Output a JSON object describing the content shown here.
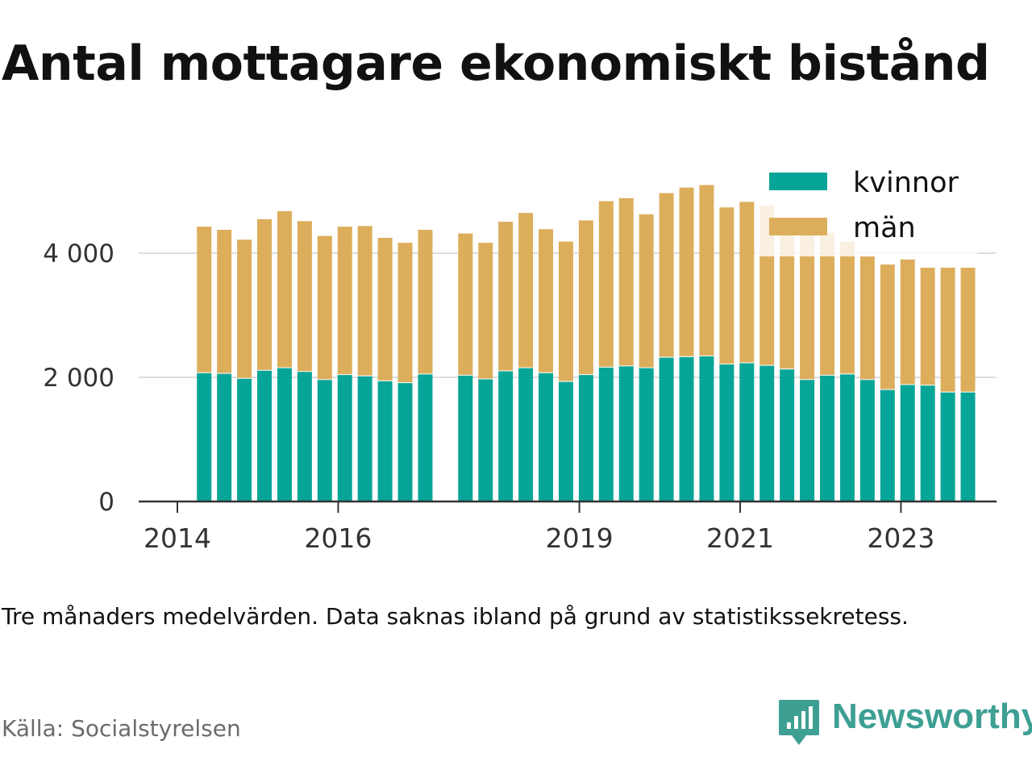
{
  "title": "Antal mottagare ekonomiskt bistånd",
  "note": "Tre månaders medelvärden. Data saknas ibland på grund av statistikssekretess.",
  "source": "Källa: Socialstyrelsen",
  "brand": {
    "name": "Newsworthy",
    "color": "#3e9f93",
    "icon": "speech-bubble-bar-chart-icon"
  },
  "chart_data": {
    "type": "bar",
    "stacked": true,
    "x_axis": {
      "tick_labels": [
        "2014",
        "2016",
        "2019",
        "2021",
        "2023"
      ],
      "range": [
        "2014-01",
        "2024-08"
      ]
    },
    "y_axis": {
      "ticks": [
        0,
        2000,
        4000
      ],
      "tick_labels": [
        "0",
        "2 000",
        "4 000"
      ],
      "range": [
        0,
        5200
      ]
    },
    "grid": true,
    "legend": "top-right",
    "periods": [
      "2014-05",
      "2014-08",
      "2014-11",
      "2015-02",
      "2015-05",
      "2015-08",
      "2015-11",
      "2016-02",
      "2016-05",
      "2016-08",
      "2016-11",
      "2017-02",
      "2017-08",
      "2017-11",
      "2018-02",
      "2018-05",
      "2018-08",
      "2018-11",
      "2019-02",
      "2019-05",
      "2019-08",
      "2019-11",
      "2020-02",
      "2020-05",
      "2020-08",
      "2020-11",
      "2021-02",
      "2021-05",
      "2021-08",
      "2021-11",
      "2022-02",
      "2022-05",
      "2022-08",
      "2022-11",
      "2023-02",
      "2023-05",
      "2023-08",
      "2023-11"
    ],
    "series": [
      {
        "name": "kvinnor",
        "color": "#07a597",
        "values": [
          2080,
          2070,
          1990,
          2120,
          2160,
          2100,
          1970,
          2050,
          2030,
          1950,
          1920,
          2060,
          2040,
          1980,
          2110,
          2160,
          2080,
          1940,
          2050,
          2170,
          2190,
          2160,
          2330,
          2340,
          2350,
          2220,
          2240,
          2200,
          2140,
          1970,
          2040,
          2060,
          1970,
          1810,
          1890,
          1880,
          1770,
          1770
        ]
      },
      {
        "name": "män",
        "color": "#dcae5c",
        "values": [
          2360,
          2320,
          2240,
          2440,
          2530,
          2430,
          2320,
          2390,
          2420,
          2310,
          2260,
          2330,
          2290,
          2200,
          2410,
          2500,
          2320,
          2260,
          2490,
          2680,
          2710,
          2480,
          2650,
          2730,
          2760,
          2530,
          2600,
          2580,
          2180,
          2360,
          2300,
          2140,
          1990,
          2020,
          2020,
          1900,
          2010,
          2010
        ]
      }
    ]
  }
}
